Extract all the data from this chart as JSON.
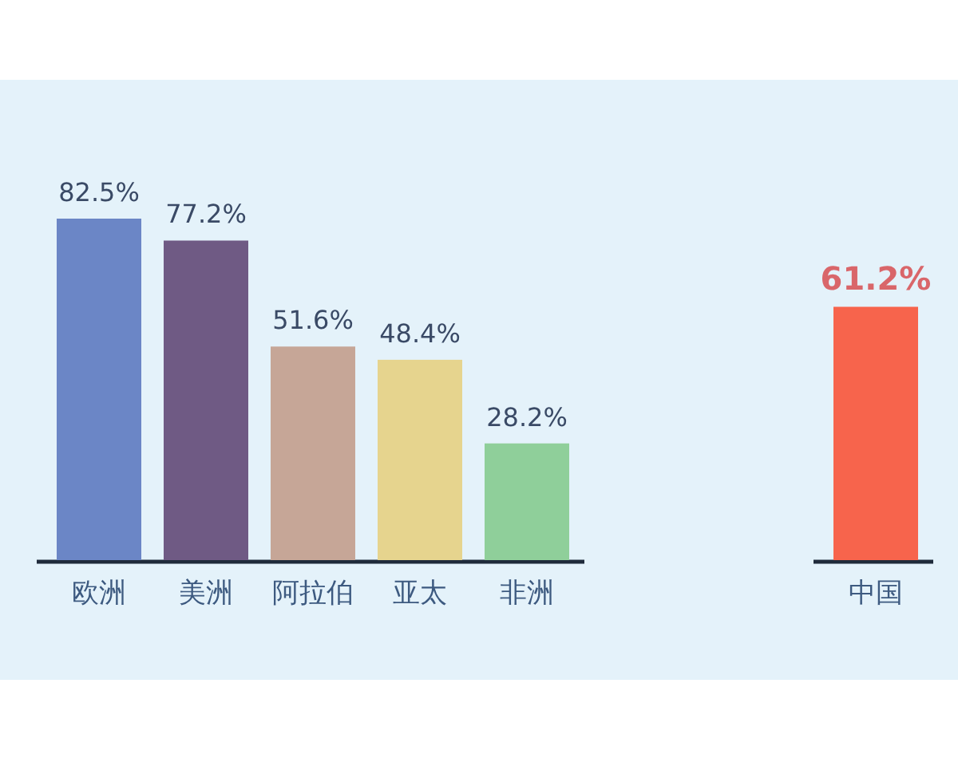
{
  "chart_data": [
    {
      "type": "bar",
      "categories": [
        "欧洲",
        "美洲",
        "阿拉伯",
        "亚太",
        "非洲"
      ],
      "values": [
        82.5,
        77.2,
        51.6,
        48.4,
        28.2
      ],
      "value_labels": [
        "82.5%",
        "77.2%",
        "51.6%",
        "48.4%",
        "28.2%"
      ],
      "colors": [
        "#6b86c6",
        "#6f5a84",
        "#c6a697",
        "#e6d48e",
        "#8fcf9a"
      ]
    },
    {
      "type": "bar",
      "categories": [
        "中国"
      ],
      "values": [
        61.2
      ],
      "value_labels": [
        "61.2%"
      ],
      "colors": [
        "#f7644c"
      ]
    }
  ]
}
